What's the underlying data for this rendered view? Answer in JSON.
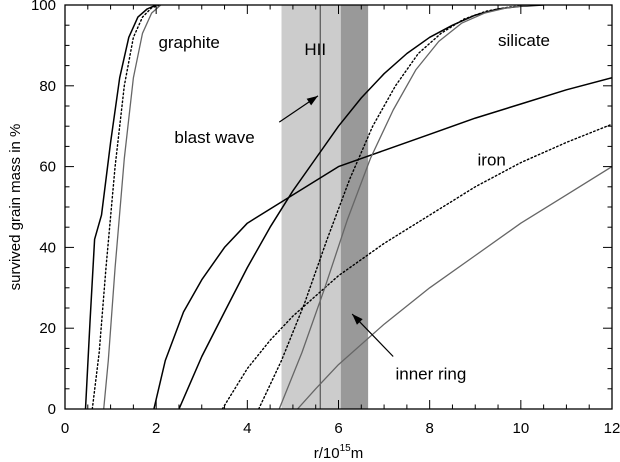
{
  "chart_data": {
    "type": "line",
    "title": "",
    "xlabel": "r/10",
    "xlabel_exponent": "15",
    "xlabel_unit": "m",
    "ylabel": "survived grain mass in %",
    "xlim": [
      0,
      12
    ],
    "ylim": [
      0,
      100
    ],
    "xticks": [
      0,
      2,
      4,
      6,
      8,
      10,
      12
    ],
    "yticks": [
      0,
      20,
      40,
      60,
      80,
      100
    ],
    "grid": false,
    "legend": "none",
    "regions": [
      {
        "x0": 4.75,
        "x1": 6.05,
        "color": "#cccccc"
      },
      {
        "x0": 6.05,
        "x1": 6.65,
        "color": "#999999"
      }
    ],
    "vertical_lines": [
      {
        "x": 5.6,
        "color": "#555555"
      }
    ],
    "series": [
      {
        "group": "graphite",
        "style": "solid",
        "color": "#000000",
        "points": [
          [
            0.45,
            0
          ],
          [
            0.55,
            22
          ],
          [
            0.65,
            42
          ],
          [
            0.8,
            48
          ],
          [
            1.0,
            66
          ],
          [
            1.2,
            82
          ],
          [
            1.4,
            92
          ],
          [
            1.6,
            97
          ],
          [
            1.8,
            99
          ],
          [
            2.0,
            100
          ]
        ]
      },
      {
        "group": "graphite",
        "style": "dotted",
        "color": "#000000",
        "points": [
          [
            0.6,
            0
          ],
          [
            0.75,
            14
          ],
          [
            0.9,
            35
          ],
          [
            1.1,
            60
          ],
          [
            1.3,
            80
          ],
          [
            1.5,
            92
          ],
          [
            1.7,
            97
          ],
          [
            1.9,
            99.3
          ],
          [
            2.1,
            100
          ]
        ]
      },
      {
        "group": "graphite",
        "style": "solid",
        "color": "#666666",
        "points": [
          [
            0.85,
            0
          ],
          [
            0.95,
            12
          ],
          [
            1.1,
            35
          ],
          [
            1.3,
            62
          ],
          [
            1.5,
            82
          ],
          [
            1.7,
            93
          ],
          [
            1.9,
            98
          ],
          [
            2.1,
            100
          ]
        ]
      },
      {
        "group": "iron",
        "style": "solid",
        "color": "#000000",
        "points": [
          [
            1.95,
            0
          ],
          [
            2.2,
            12
          ],
          [
            2.6,
            24
          ],
          [
            3.0,
            32
          ],
          [
            3.5,
            40
          ],
          [
            4.0,
            46
          ],
          [
            5.0,
            53
          ],
          [
            6.0,
            60
          ],
          [
            7.0,
            64
          ],
          [
            8.0,
            68
          ],
          [
            9.0,
            72
          ],
          [
            10.0,
            75.5
          ],
          [
            11.0,
            79
          ],
          [
            12.0,
            82
          ]
        ]
      },
      {
        "group": "iron",
        "style": "dotted",
        "color": "#000000",
        "points": [
          [
            3.45,
            0
          ],
          [
            4.0,
            10
          ],
          [
            4.5,
            17
          ],
          [
            5.0,
            23
          ],
          [
            6.0,
            33
          ],
          [
            7.0,
            41
          ],
          [
            8.0,
            48
          ],
          [
            9.0,
            55
          ],
          [
            10.0,
            61
          ],
          [
            11.0,
            66
          ],
          [
            12.0,
            70.5
          ]
        ]
      },
      {
        "group": "iron",
        "style": "solid",
        "color": "#666666",
        "points": [
          [
            5.1,
            0
          ],
          [
            5.5,
            5
          ],
          [
            6.0,
            11
          ],
          [
            7.0,
            21
          ],
          [
            8.0,
            30
          ],
          [
            9.0,
            38
          ],
          [
            10.0,
            46
          ],
          [
            11.0,
            53
          ],
          [
            12.0,
            60
          ]
        ]
      },
      {
        "group": "silicate",
        "style": "solid",
        "color": "#000000",
        "points": [
          [
            2.5,
            0
          ],
          [
            3.0,
            13
          ],
          [
            3.5,
            24
          ],
          [
            4.0,
            35
          ],
          [
            4.5,
            45
          ],
          [
            5.0,
            54
          ],
          [
            5.5,
            62
          ],
          [
            6.0,
            70
          ],
          [
            6.5,
            77
          ],
          [
            7.0,
            83
          ],
          [
            7.5,
            88
          ],
          [
            8.0,
            92
          ],
          [
            8.5,
            95
          ],
          [
            9.0,
            97.5
          ],
          [
            9.5,
            99
          ],
          [
            10.0,
            99.7
          ],
          [
            10.5,
            100
          ]
        ]
      },
      {
        "group": "silicate",
        "style": "dotted",
        "color": "#000000",
        "points": [
          [
            4.25,
            0
          ],
          [
            4.75,
            12
          ],
          [
            5.25,
            26
          ],
          [
            5.75,
            42
          ],
          [
            6.25,
            57
          ],
          [
            6.75,
            70
          ],
          [
            7.25,
            80
          ],
          [
            7.75,
            88
          ],
          [
            8.25,
            93
          ],
          [
            8.75,
            96.5
          ],
          [
            9.25,
            98.5
          ],
          [
            9.75,
            99.5
          ],
          [
            10.25,
            100
          ]
        ]
      },
      {
        "group": "silicate",
        "style": "solid",
        "color": "#666666",
        "points": [
          [
            4.7,
            0
          ],
          [
            5.2,
            14
          ],
          [
            5.7,
            30
          ],
          [
            6.2,
            47
          ],
          [
            6.7,
            62
          ],
          [
            7.2,
            74
          ],
          [
            7.7,
            84
          ],
          [
            8.2,
            91
          ],
          [
            8.7,
            95.5
          ],
          [
            9.2,
            98
          ],
          [
            9.7,
            99.3
          ],
          [
            10.2,
            100
          ]
        ]
      }
    ],
    "annotations": [
      {
        "text": "graphite",
        "x": 2.05,
        "y": 89.3
      },
      {
        "text": "silicate",
        "x": 9.5,
        "y": 89.8
      },
      {
        "text": "HII",
        "x": 5.25,
        "y": 87.6
      },
      {
        "text": "blast wave",
        "x": 2.4,
        "y": 65.9
      },
      {
        "text": "iron",
        "x": 9.05,
        "y": 60.3
      },
      {
        "text": "inner ring",
        "x": 7.25,
        "y": 7.3
      }
    ],
    "arrows": [
      {
        "from": [
          4.7,
          71.0
        ],
        "to": [
          5.55,
          77.5
        ]
      },
      {
        "from": [
          7.2,
          13.0
        ],
        "to": [
          6.3,
          23.5
        ]
      }
    ]
  }
}
